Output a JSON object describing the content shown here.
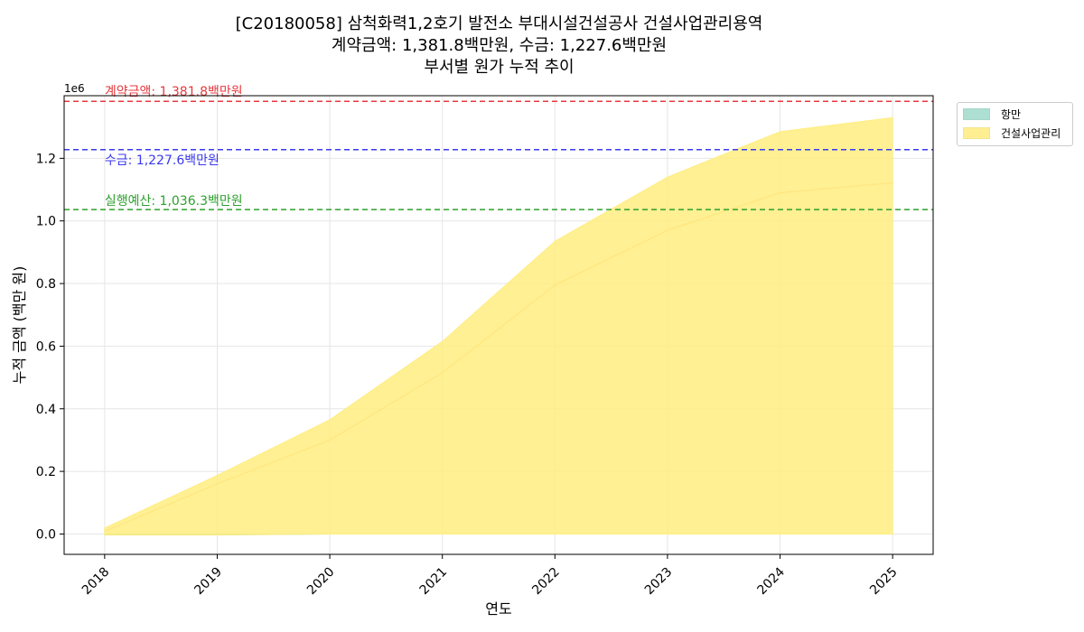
{
  "title": {
    "line1": "[C20180058] 삼척화력1,2호기 발전소 부대시설건설공사 건설사업관리용역",
    "line2": "계약금액: 1,381.8백만원, 수금: 1,227.6백만원",
    "line3": "부서별 원가 누적 추이"
  },
  "legend": {
    "items": [
      {
        "label": "항만",
        "color": "#99d8c9"
      },
      {
        "label": "건설사업관리",
        "color": "#ffed80"
      }
    ]
  },
  "chart_data": {
    "type": "area",
    "stacked": true,
    "title": "부서별 원가 누적 추이",
    "xlabel": "연도",
    "ylabel": "누적 금액 (백만 원)",
    "y_scale_label": "1e6",
    "x": [
      2018,
      2019,
      2020,
      2021,
      2022,
      2023,
      2024,
      2025
    ],
    "xlim": [
      2017.64,
      2025.36
    ],
    "ylim": [
      -65000,
      1400000
    ],
    "yticks": [
      0,
      200000,
      400000,
      600000,
      800000,
      1000000,
      1200000
    ],
    "ytick_labels": [
      "0.0",
      "0.2",
      "0.4",
      "0.6",
      "0.8",
      "1.0",
      "1.2"
    ],
    "grid": true,
    "legend_position": "outside-top-right",
    "series": [
      {
        "name": "항만",
        "color": "#99d8c9",
        "values": [
          -3000,
          -3000,
          0,
          0,
          0,
          0,
          0,
          0
        ]
      },
      {
        "name": "건설사업관리",
        "color": "#ffed80",
        "values": [
          22000,
          190000,
          365000,
          615000,
          935000,
          1140000,
          1285000,
          1330000
        ]
      }
    ],
    "inner_line": {
      "color": "#ffe680",
      "values": [
        8000,
        160000,
        300000,
        515000,
        795000,
        970000,
        1090000,
        1122000
      ]
    },
    "reference_lines": [
      {
        "value": 1381800,
        "color": "#e8383d",
        "label": "계약금액: 1,381.8백만원"
      },
      {
        "value": 1227600,
        "color": "#3a3aef",
        "label": "수금: 1,227.6백만원"
      },
      {
        "value": 1036300,
        "color": "#2ea02e",
        "label": "실행예산: 1,036.3백만원"
      }
    ]
  }
}
